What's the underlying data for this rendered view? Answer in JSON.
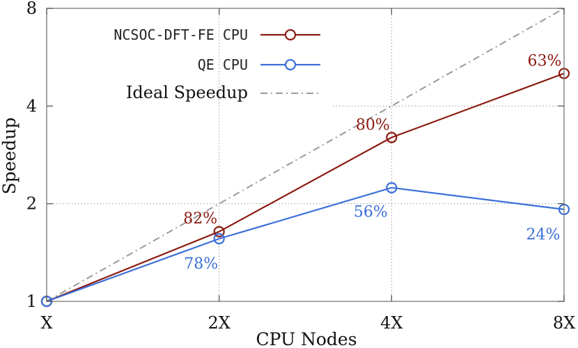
{
  "chart_data": {
    "type": "line",
    "title": "",
    "xlabel": "CPU Nodes",
    "ylabel": "Speedup",
    "y_scale": "log2",
    "ylim": [
      1,
      8
    ],
    "categories": [
      "X",
      "2X",
      "4X",
      "8X"
    ],
    "x": [
      1,
      2,
      4,
      8
    ],
    "yticks": [
      "1",
      "2",
      "4",
      "8"
    ],
    "grid": true,
    "legend_position": "top-left",
    "series": [
      {
        "name": "NCSOC-DFT-FE CPU",
        "values": [
          1,
          1.64,
          3.2,
          5.04
        ],
        "color": "#8b1a10",
        "marker": "circle",
        "labels": [
          "",
          "82%",
          "80%",
          "63%"
        ]
      },
      {
        "name": "QE CPU",
        "values": [
          1,
          1.56,
          2.24,
          1.92
        ],
        "color": "#3b6fd8",
        "marker": "circle",
        "labels": [
          "",
          "78%",
          "56%",
          "24%"
        ]
      },
      {
        "name": "Ideal Speedup",
        "values": [
          1,
          2,
          4,
          8
        ],
        "color": "#999999",
        "style": "dash-dot",
        "labels": [
          "",
          "",
          "",
          ""
        ]
      }
    ]
  }
}
